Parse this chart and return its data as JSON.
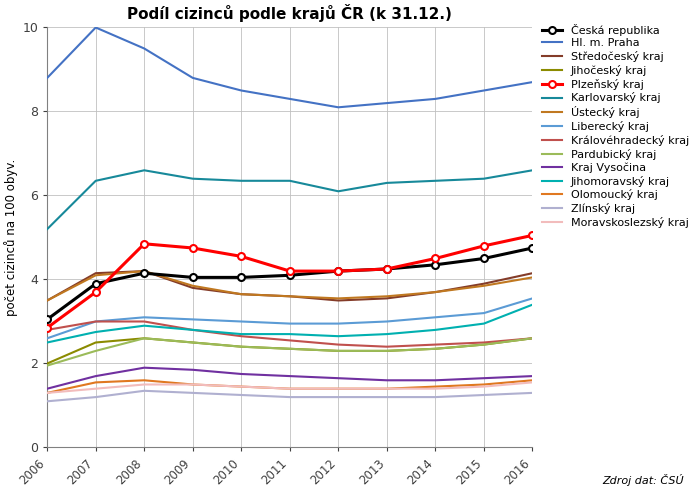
{
  "title": "Podíl cizinců podle krajů ČR (k 31.12.)",
  "ylabel": "počet cizinců na 100 obyv.",
  "years": [
    2006,
    2007,
    2008,
    2009,
    2010,
    2011,
    2012,
    2013,
    2014,
    2015,
    2016
  ],
  "ylim": [
    0,
    10
  ],
  "yticks": [
    0,
    2,
    4,
    6,
    8,
    10
  ],
  "source": "Zdroj dat: ČSÚ",
  "figsize": [
    6.98,
    4.91
  ],
  "dpi": 100,
  "series": [
    {
      "label": "Česká republika",
      "color": "#000000",
      "linewidth": 2.2,
      "marker": "o",
      "markerfacecolor": "white",
      "markeredgecolor": "#000000",
      "markersize": 5,
      "zorder": 10,
      "values": [
        3.05,
        3.9,
        4.15,
        4.05,
        4.05,
        4.1,
        4.2,
        4.25,
        4.35,
        4.5,
        4.75
      ]
    },
    {
      "label": "Hl. m. Praha",
      "color": "#4472C4",
      "linewidth": 1.5,
      "marker": null,
      "zorder": 5,
      "values": [
        8.8,
        10.0,
        9.5,
        8.8,
        8.5,
        8.3,
        8.1,
        8.2,
        8.3,
        8.5,
        8.7
      ]
    },
    {
      "label": "Středočeský kraj",
      "color": "#843C29",
      "linewidth": 1.5,
      "marker": null,
      "zorder": 5,
      "values": [
        3.5,
        4.15,
        4.2,
        3.8,
        3.65,
        3.6,
        3.5,
        3.55,
        3.7,
        3.9,
        4.15
      ]
    },
    {
      "label": "Jihočeský kraj",
      "color": "#8B8B00",
      "linewidth": 1.5,
      "marker": null,
      "zorder": 5,
      "values": [
        2.0,
        2.5,
        2.6,
        2.5,
        2.4,
        2.35,
        2.3,
        2.3,
        2.35,
        2.45,
        2.6
      ]
    },
    {
      "label": "Plzeňský kraj",
      "color": "#FF0000",
      "linewidth": 2.2,
      "marker": "o",
      "markerfacecolor": "white",
      "markeredgecolor": "#FF0000",
      "markersize": 5,
      "zorder": 10,
      "values": [
        2.85,
        3.7,
        4.85,
        4.75,
        4.55,
        4.2,
        4.2,
        4.25,
        4.5,
        4.8,
        5.05
      ]
    },
    {
      "label": "Karlovarský kraj",
      "color": "#17899A",
      "linewidth": 1.5,
      "marker": null,
      "zorder": 5,
      "values": [
        5.2,
        6.35,
        6.6,
        6.4,
        6.35,
        6.35,
        6.1,
        6.3,
        6.35,
        6.4,
        6.6
      ]
    },
    {
      "label": "Ústecký kraj",
      "color": "#C07820",
      "linewidth": 1.5,
      "marker": null,
      "zorder": 5,
      "values": [
        3.5,
        4.1,
        4.2,
        3.85,
        3.65,
        3.6,
        3.55,
        3.6,
        3.7,
        3.85,
        4.05
      ]
    },
    {
      "label": "Liberecký kraj",
      "color": "#5B9BD5",
      "linewidth": 1.5,
      "marker": null,
      "zorder": 5,
      "values": [
        2.6,
        3.0,
        3.1,
        3.05,
        3.0,
        2.95,
        2.95,
        3.0,
        3.1,
        3.2,
        3.55
      ]
    },
    {
      "label": "Královéhradecký kraj",
      "color": "#C0504D",
      "linewidth": 1.5,
      "marker": null,
      "zorder": 5,
      "values": [
        2.8,
        3.0,
        3.0,
        2.8,
        2.65,
        2.55,
        2.45,
        2.4,
        2.45,
        2.5,
        2.6
      ]
    },
    {
      "label": "Pardubický kraj",
      "color": "#9BBB59",
      "linewidth": 1.5,
      "marker": null,
      "zorder": 5,
      "values": [
        1.95,
        2.3,
        2.6,
        2.5,
        2.4,
        2.35,
        2.3,
        2.3,
        2.35,
        2.45,
        2.6
      ]
    },
    {
      "label": "Kraj Vysočina",
      "color": "#7030A0",
      "linewidth": 1.5,
      "marker": null,
      "zorder": 5,
      "values": [
        1.4,
        1.7,
        1.9,
        1.85,
        1.75,
        1.7,
        1.65,
        1.6,
        1.6,
        1.65,
        1.7
      ]
    },
    {
      "label": "Jihomoravský kraj",
      "color": "#00B0B0",
      "linewidth": 1.5,
      "marker": null,
      "zorder": 5,
      "values": [
        2.5,
        2.75,
        2.9,
        2.8,
        2.7,
        2.7,
        2.65,
        2.7,
        2.8,
        2.95,
        3.4
      ]
    },
    {
      "label": "Olomoucký kraj",
      "color": "#E07820",
      "linewidth": 1.5,
      "marker": null,
      "zorder": 5,
      "values": [
        1.3,
        1.55,
        1.6,
        1.5,
        1.45,
        1.4,
        1.4,
        1.4,
        1.45,
        1.5,
        1.6
      ]
    },
    {
      "label": "Zlínský kraj",
      "color": "#B0B0D0",
      "linewidth": 1.5,
      "marker": null,
      "zorder": 5,
      "values": [
        1.1,
        1.2,
        1.35,
        1.3,
        1.25,
        1.2,
        1.2,
        1.2,
        1.2,
        1.25,
        1.3
      ]
    },
    {
      "label": "Moravskoslezský kraj",
      "color": "#F2BCBC",
      "linewidth": 1.5,
      "marker": null,
      "zorder": 5,
      "values": [
        1.3,
        1.4,
        1.5,
        1.5,
        1.45,
        1.4,
        1.4,
        1.4,
        1.4,
        1.45,
        1.55
      ]
    }
  ]
}
